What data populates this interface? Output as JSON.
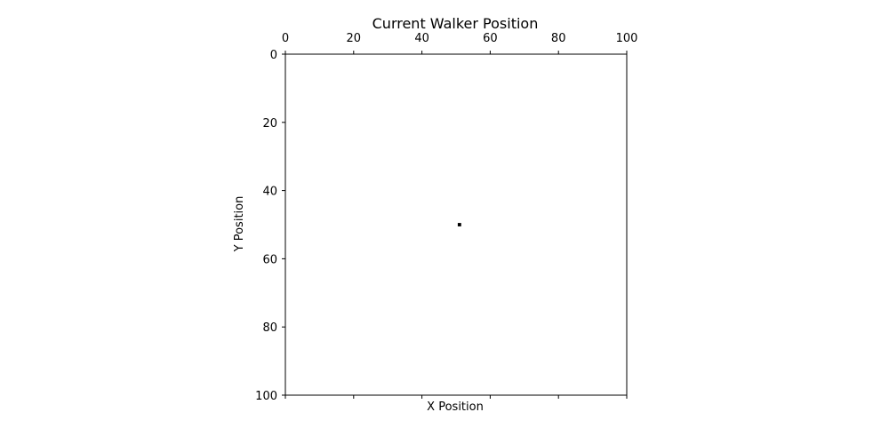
{
  "chart_data": {
    "type": "heatmap",
    "title": "Current Walker Position",
    "xlabel": "X Position",
    "ylabel": "Y Position",
    "xlim": [
      0,
      100
    ],
    "ylim": [
      100,
      0
    ],
    "x_axis_location": "top",
    "y_axis_inverted": true,
    "grid": false,
    "x_ticks": [
      0,
      20,
      40,
      60,
      80,
      100
    ],
    "y_ticks": [
      0,
      20,
      40,
      60,
      80,
      100
    ],
    "grid_size": [
      100,
      100
    ],
    "walker": {
      "x": 51,
      "y": 50
    },
    "colors": {
      "background": "#ffffff",
      "walker": "#000000",
      "axis": "#000000"
    }
  }
}
